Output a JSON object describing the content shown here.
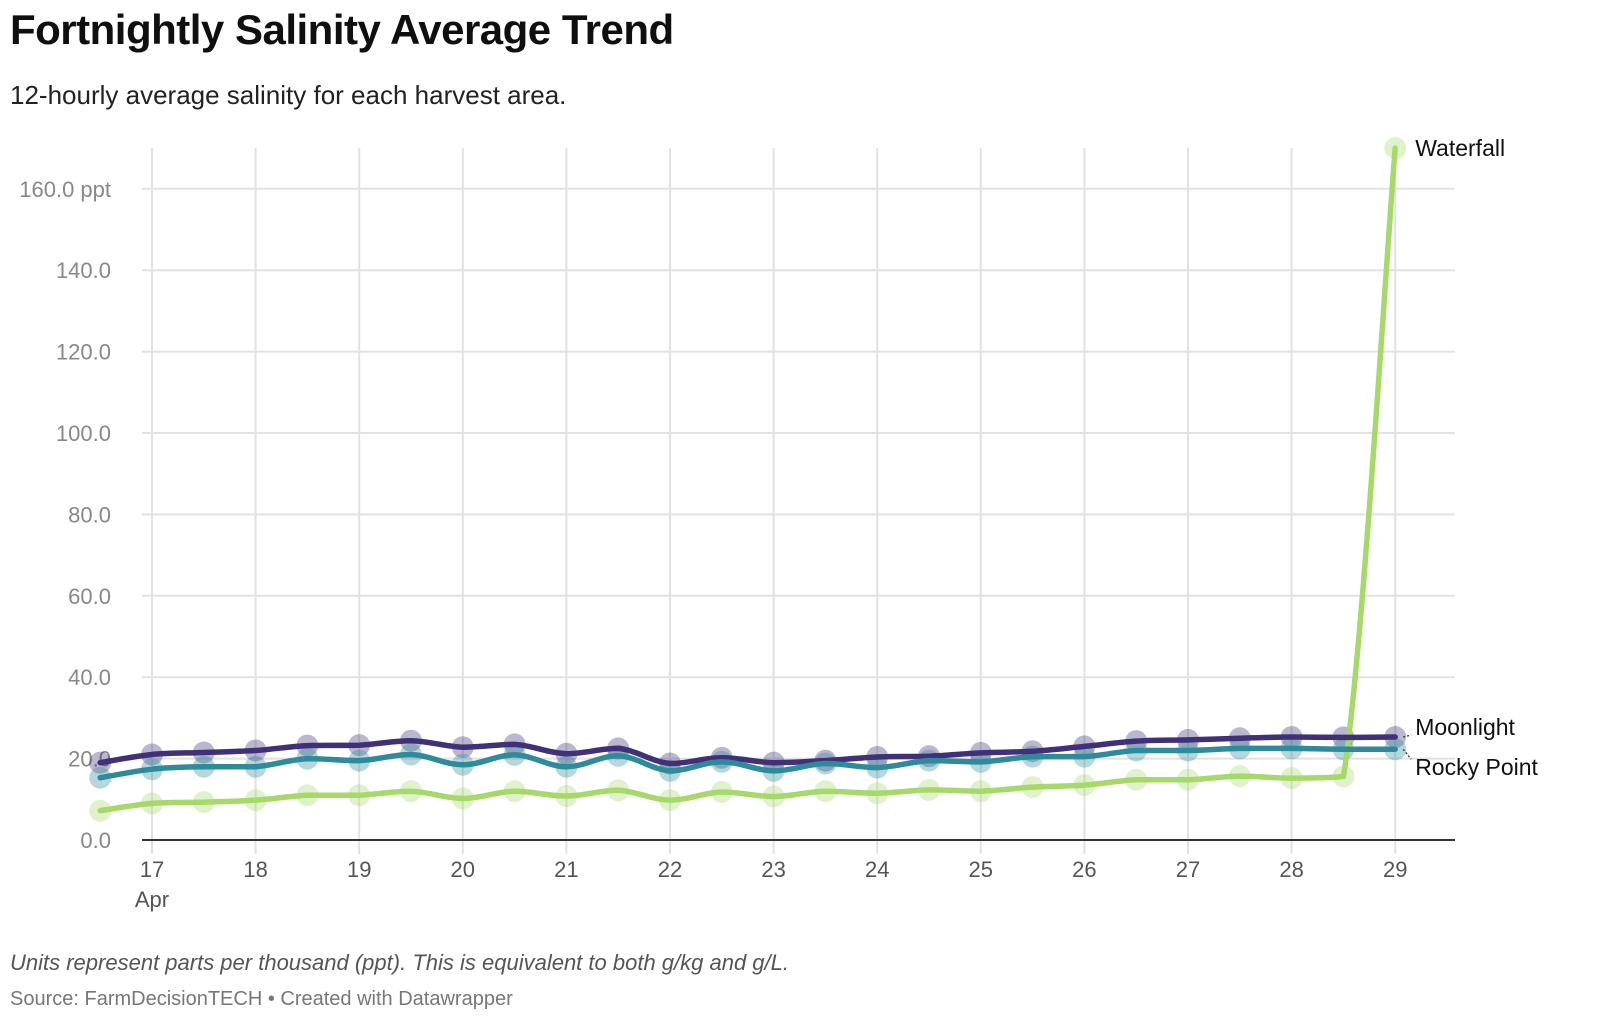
{
  "header": {
    "title": "Fortnightly Salinity Average Trend",
    "subtitle": "12-hourly average salinity for each harvest area."
  },
  "footer": {
    "notes": "Units represent parts per thousand (ppt). This is equivalent to both g/kg and g/L.",
    "source": "Source: FarmDecisionTECH • Created with Datawrapper"
  },
  "chart_data": {
    "type": "line",
    "title": "Fortnightly Salinity Average Trend",
    "subtitle": "12-hourly average salinity for each harvest area.",
    "xlabel": "",
    "ylabel": "",
    "ylim": [
      0,
      170
    ],
    "grid": true,
    "y_ticks": [
      {
        "value": 0,
        "label": "0.0"
      },
      {
        "value": 20,
        "label": "20.0"
      },
      {
        "value": 40,
        "label": "40.0"
      },
      {
        "value": 60,
        "label": "60.0"
      },
      {
        "value": 80,
        "label": "80.0"
      },
      {
        "value": 100,
        "label": "100.0"
      },
      {
        "value": 120,
        "label": "120.0"
      },
      {
        "value": 140,
        "label": "140.0"
      },
      {
        "value": 160,
        "label": "160.0 ppt"
      }
    ],
    "x_ticks": [
      "17",
      "18",
      "19",
      "20",
      "21",
      "22",
      "23",
      "24",
      "25",
      "26",
      "27",
      "28",
      "29"
    ],
    "x_tick_month": "Apr",
    "x": [
      "Apr 16 PM",
      "Apr 17 AM",
      "Apr 17 PM",
      "Apr 18 AM",
      "Apr 18 PM",
      "Apr 19 AM",
      "Apr 19 PM",
      "Apr 20 AM",
      "Apr 20 PM",
      "Apr 21 AM",
      "Apr 21 PM",
      "Apr 22 AM",
      "Apr 22 PM",
      "Apr 23 AM",
      "Apr 23 PM",
      "Apr 24 AM",
      "Apr 24 PM",
      "Apr 25 AM",
      "Apr 25 PM",
      "Apr 26 AM",
      "Apr 26 PM",
      "Apr 27 AM",
      "Apr 27 PM",
      "Apr 28 AM",
      "Apr 28 PM",
      "Apr 29 AM"
    ],
    "series": [
      {
        "name": "Waterfall",
        "color": "#a6d96a",
        "values": [
          7.2,
          9.0,
          9.3,
          9.8,
          11.0,
          11.0,
          12.0,
          10.2,
          12.0,
          10.8,
          12.2,
          9.8,
          11.8,
          10.7,
          12.0,
          11.5,
          12.3,
          12.0,
          13.0,
          13.5,
          14.8,
          14.8,
          15.7,
          15.2,
          15.6,
          170.0
        ]
      },
      {
        "name": "Moonlight",
        "color": "#3f3077",
        "values": [
          19.0,
          21.0,
          21.5,
          22.0,
          23.2,
          23.3,
          24.4,
          22.8,
          23.5,
          21.2,
          22.5,
          18.8,
          20.2,
          19.0,
          19.5,
          20.4,
          20.6,
          21.4,
          21.8,
          23.0,
          24.3,
          24.6,
          25.0,
          25.3,
          25.2,
          25.3
        ]
      },
      {
        "name": "Rocky Point",
        "color": "#2e8b9c",
        "values": [
          15.3,
          17.4,
          18.0,
          18.0,
          20.0,
          19.5,
          21.0,
          18.5,
          20.9,
          18.0,
          20.7,
          17.0,
          19.2,
          17.0,
          18.8,
          17.8,
          19.5,
          19.2,
          20.5,
          20.5,
          22.0,
          22.0,
          22.5,
          22.5,
          22.3,
          22.3
        ]
      }
    ]
  }
}
